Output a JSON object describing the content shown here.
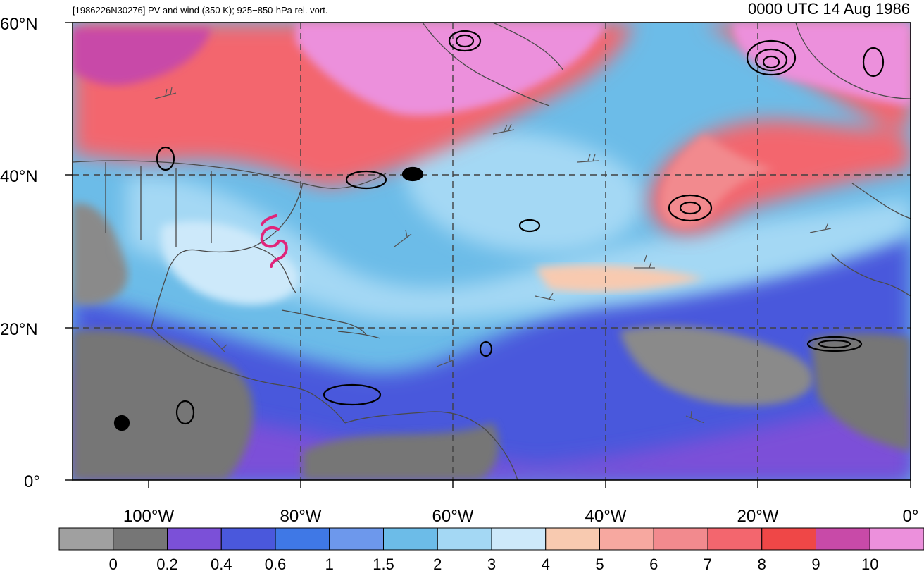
{
  "figure": {
    "left_title": "[1986226N30276] PV and wind (350 K); 925−850-hPa rel. vort.",
    "right_title": "0000 UTC 14 Aug 1986"
  },
  "axes": {
    "lat_labels": [
      "60°N",
      "40°N",
      "20°N",
      "0°"
    ],
    "lon_labels": [
      "100°W",
      "80°W",
      "60°W",
      "40°W",
      "20°W",
      "0°"
    ]
  },
  "colorbar": {
    "ticks": [
      "0",
      "0.2",
      "0.4",
      "0.6",
      "1",
      "1.5",
      "2",
      "3",
      "4",
      "5",
      "6",
      "7",
      "8",
      "9",
      "10"
    ],
    "colors": [
      "#a0a0a0",
      "#767676",
      "#7b50d8",
      "#4a58dc",
      "#3f78e6",
      "#6d98ec",
      "#6cbce8",
      "#a4d8f4",
      "#cde9fa",
      "#f8cab0",
      "#f7a8a0",
      "#f28a8e",
      "#f3666e",
      "#ef4747",
      "#c84aa8",
      "#ec90dc"
    ]
  },
  "map": {
    "storm_marker": "tropical-cyclone-icon",
    "colors": {
      "frame": "#000000",
      "coastline": "#4a4a4a",
      "gridline": "#404040",
      "vorticity": "#000000",
      "storm": "#e0257a"
    }
  }
}
